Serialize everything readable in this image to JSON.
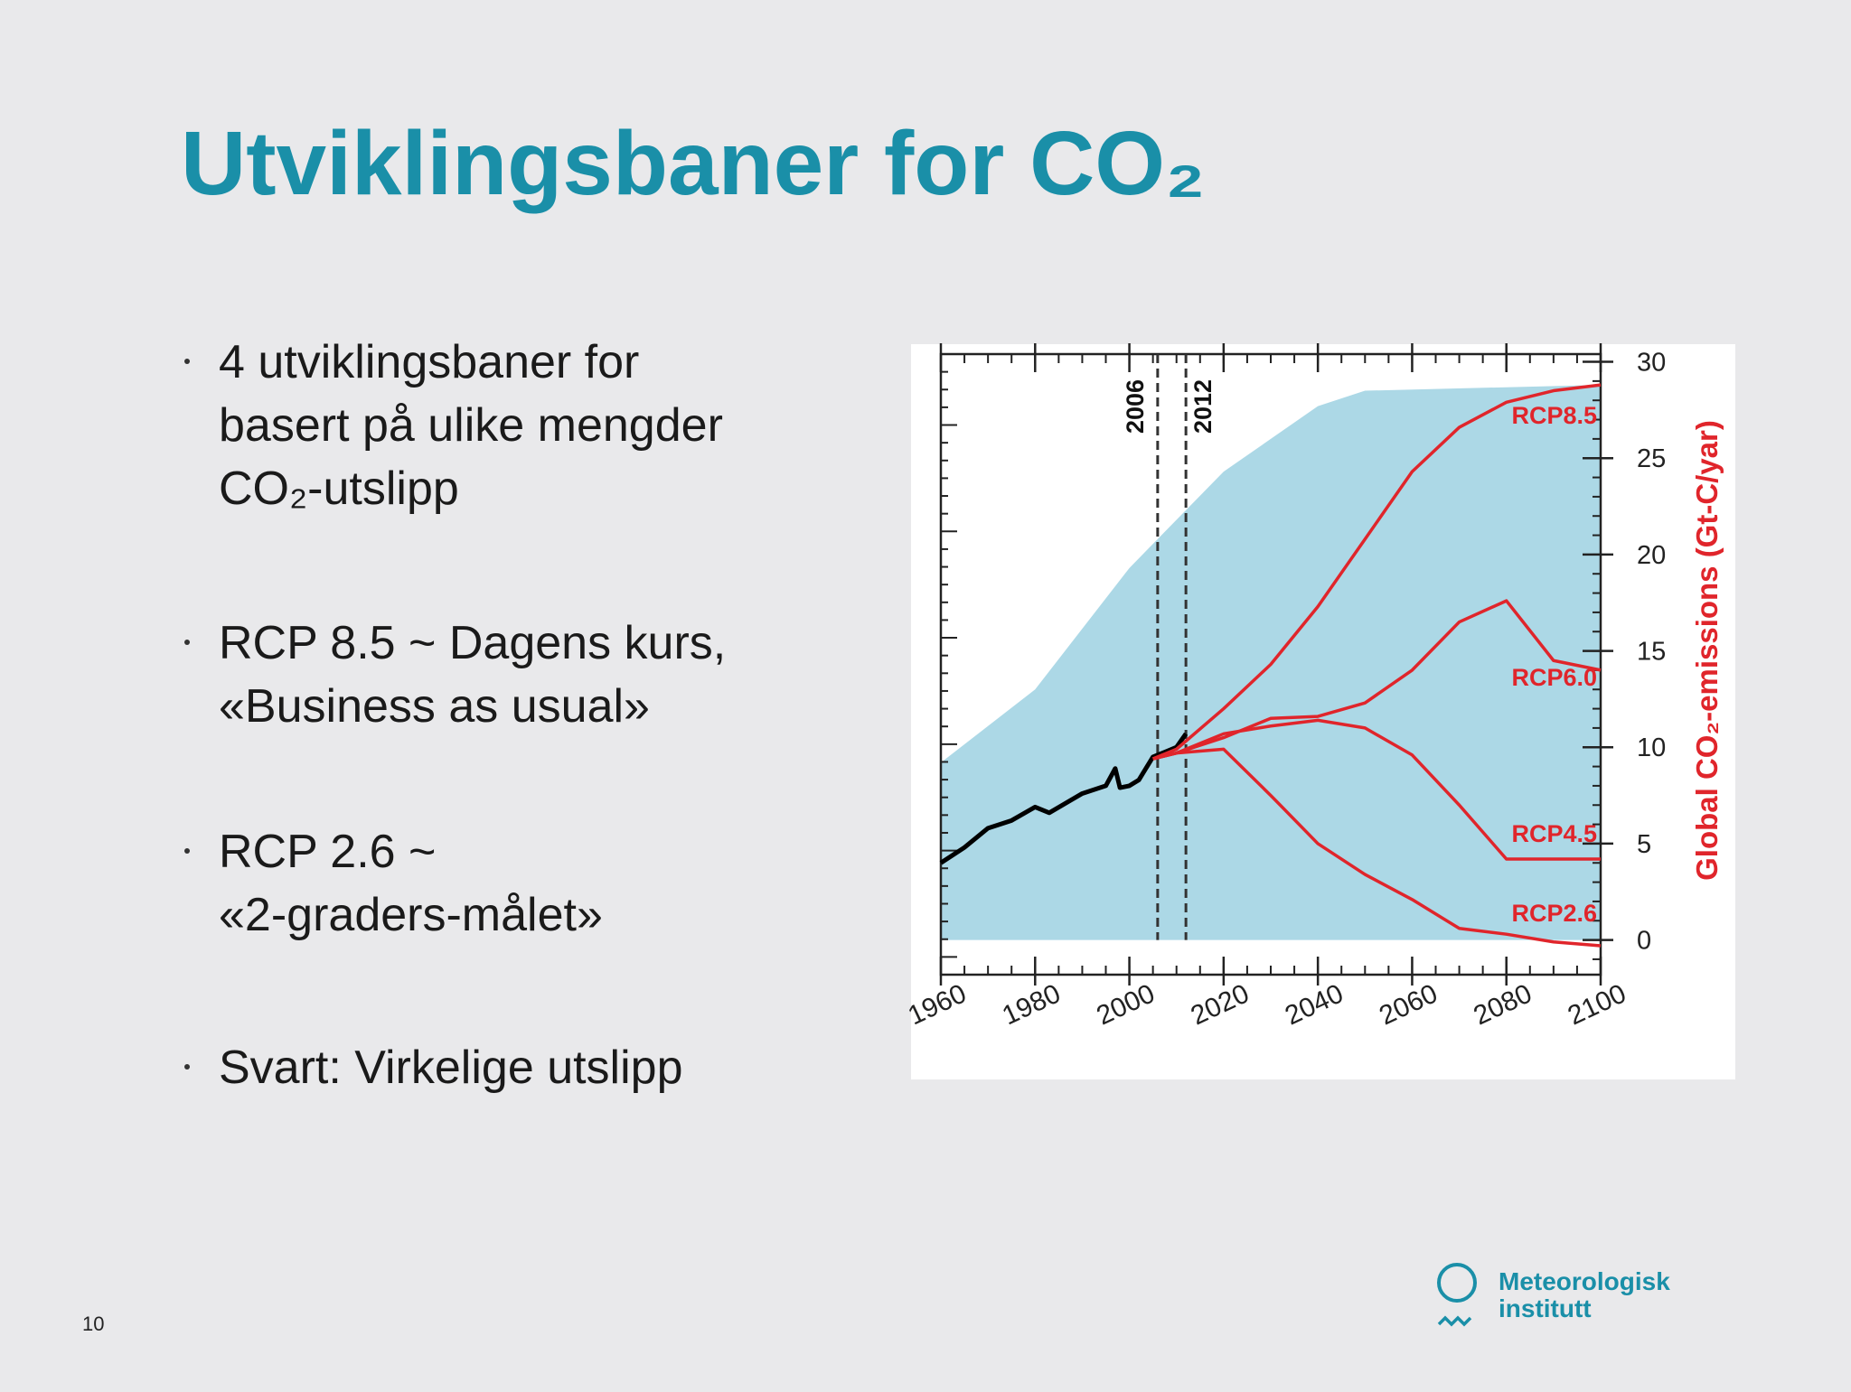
{
  "title": "Utviklingsbaner for CO₂",
  "bullets": [
    [
      "4 utviklingsbaner for",
      "basert på ulike mengder",
      "CO₂-utslipp"
    ],
    [
      "RCP 8.5 ~ Dagens kurs,",
      "«Business as usual»"
    ],
    [
      "RCP 2.6 ~",
      "«2-graders-målet»"
    ],
    [
      "Svart: Virkelige utslipp"
    ]
  ],
  "page_number": "10",
  "logo": [
    "Meteorologisk",
    "institutt"
  ],
  "chart_data": {
    "type": "line",
    "ylabel": "Global CO₂-emissions (Gt-C/yar)",
    "xlim": [
      1960,
      2100
    ],
    "xticks": [
      1960,
      1980,
      2000,
      2020,
      2040,
      2060,
      2080,
      2100
    ],
    "ylim": [
      -1.8,
      30.4
    ],
    "yticks": [
      0,
      5,
      10,
      15,
      20,
      25,
      30
    ],
    "vlines": [
      2006,
      2012
    ],
    "area": {
      "color": "#acd8e6",
      "x": [
        1960,
        1980,
        2000,
        2020,
        2040,
        2050,
        2100
      ],
      "values": [
        9.2,
        13.0,
        19.3,
        24.3,
        27.7,
        28.5,
        28.8
      ]
    },
    "series": [
      {
        "color": "#000000",
        "x": [
          1960,
          1965,
          1970,
          1975,
          1980,
          1983,
          1990,
          1995,
          1997,
          1998,
          2000,
          2002,
          2005,
          2008,
          2010,
          2012
        ],
        "values": [
          4.0,
          4.8,
          5.8,
          6.2,
          6.9,
          6.6,
          7.6,
          8.0,
          8.9,
          7.9,
          8.0,
          8.3,
          9.5,
          9.8,
          10.0,
          10.7
        ]
      },
      {
        "name": "RCP8.5",
        "color": "#e0252b",
        "x": [
          2005,
          2010,
          2020,
          2030,
          2040,
          2050,
          2060,
          2070,
          2080,
          2090,
          2100
        ],
        "values": [
          9.4,
          9.9,
          12.0,
          14.3,
          17.3,
          20.8,
          24.3,
          26.6,
          27.9,
          28.5,
          28.8
        ]
      },
      {
        "name": "RCP6.0",
        "color": "#e0252b",
        "x": [
          2005,
          2010,
          2020,
          2030,
          2040,
          2050,
          2060,
          2070,
          2080,
          2090,
          2100
        ],
        "values": [
          9.4,
          9.7,
          10.5,
          11.5,
          11.6,
          12.3,
          14.0,
          16.5,
          17.6,
          14.5,
          14.0
        ]
      },
      {
        "name": "RCP4.5",
        "color": "#e0252b",
        "x": [
          2005,
          2010,
          2020,
          2030,
          2040,
          2050,
          2060,
          2070,
          2080,
          2090,
          2100
        ],
        "values": [
          9.4,
          9.7,
          10.7,
          11.1,
          11.4,
          11.0,
          9.6,
          7.0,
          4.2,
          4.2,
          4.2
        ]
      },
      {
        "name": "RCP2.6",
        "color": "#e0252b",
        "x": [
          2005,
          2010,
          2020,
          2030,
          2040,
          2050,
          2060,
          2070,
          2080,
          2090,
          2100
        ],
        "values": [
          9.4,
          9.7,
          9.9,
          7.5,
          5.0,
          3.4,
          2.1,
          0.6,
          0.3,
          -0.1,
          -0.3
        ]
      }
    ]
  }
}
